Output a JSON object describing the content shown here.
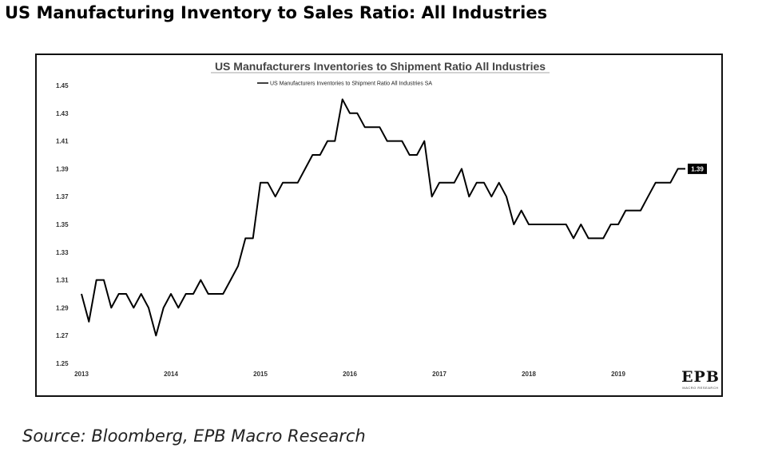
{
  "page": {
    "title": "US Manufacturing Inventory to Sales Ratio: All Industries",
    "source": "Source: Bloomberg, EPB Macro Research"
  },
  "logo": {
    "main": "EPB",
    "sub": "MACRO RESEARCH"
  },
  "chart_data": {
    "type": "line",
    "title": "US Manufacturers Inventories to Shipment Ratio All Industries",
    "xlabel": "",
    "ylabel": "",
    "legend_position": "top-center",
    "grid": false,
    "x_tick_labels": [
      "2013",
      "2014",
      "2015",
      "2016",
      "2017",
      "2018",
      "2019"
    ],
    "y_tick_labels": [
      "1.45",
      "1.43",
      "1.41",
      "1.39",
      "1.37",
      "1.35",
      "1.33",
      "1.31",
      "1.29",
      "1.27",
      "1.25"
    ],
    "xlim": [
      "2013-01",
      "2020-01"
    ],
    "ylim": [
      1.25,
      1.45
    ],
    "last_value_label": "1.39",
    "series": [
      {
        "name": "US Manufacturers Inventories to Shipment Ratio All Industries SA",
        "color": "#000000",
        "x": [
          "2013-01",
          "2013-02",
          "2013-03",
          "2013-04",
          "2013-05",
          "2013-06",
          "2013-07",
          "2013-08",
          "2013-09",
          "2013-10",
          "2013-11",
          "2013-12",
          "2014-01",
          "2014-02",
          "2014-03",
          "2014-04",
          "2014-05",
          "2014-06",
          "2014-07",
          "2014-08",
          "2014-09",
          "2014-10",
          "2014-11",
          "2014-12",
          "2015-01",
          "2015-02",
          "2015-03",
          "2015-04",
          "2015-05",
          "2015-06",
          "2015-07",
          "2015-08",
          "2015-09",
          "2015-10",
          "2015-11",
          "2015-12",
          "2016-01",
          "2016-02",
          "2016-03",
          "2016-04",
          "2016-05",
          "2016-06",
          "2016-07",
          "2016-08",
          "2016-09",
          "2016-10",
          "2016-11",
          "2016-12",
          "2017-01",
          "2017-02",
          "2017-03",
          "2017-04",
          "2017-05",
          "2017-06",
          "2017-07",
          "2017-08",
          "2017-09",
          "2017-10",
          "2017-11",
          "2017-12",
          "2018-01",
          "2018-02",
          "2018-03",
          "2018-04",
          "2018-05",
          "2018-06",
          "2018-07",
          "2018-08",
          "2018-09",
          "2018-10",
          "2018-11",
          "2018-12",
          "2019-01",
          "2019-02",
          "2019-03",
          "2019-04",
          "2019-05",
          "2019-06",
          "2019-07",
          "2019-08",
          "2019-09",
          "2019-10"
        ],
        "values": [
          1.3,
          1.28,
          1.31,
          1.31,
          1.29,
          1.3,
          1.3,
          1.29,
          1.3,
          1.29,
          1.27,
          1.29,
          1.3,
          1.29,
          1.3,
          1.3,
          1.31,
          1.3,
          1.3,
          1.3,
          1.31,
          1.32,
          1.34,
          1.34,
          1.38,
          1.38,
          1.37,
          1.38,
          1.38,
          1.38,
          1.39,
          1.4,
          1.4,
          1.41,
          1.41,
          1.44,
          1.43,
          1.43,
          1.42,
          1.42,
          1.42,
          1.41,
          1.41,
          1.41,
          1.4,
          1.4,
          1.41,
          1.37,
          1.38,
          1.38,
          1.38,
          1.39,
          1.37,
          1.38,
          1.38,
          1.37,
          1.38,
          1.37,
          1.35,
          1.36,
          1.35,
          1.35,
          1.35,
          1.35,
          1.35,
          1.35,
          1.34,
          1.35,
          1.34,
          1.34,
          1.34,
          1.35,
          1.35,
          1.36,
          1.36,
          1.36,
          1.37,
          1.38,
          1.38,
          1.38,
          1.39,
          1.39
        ]
      }
    ]
  }
}
